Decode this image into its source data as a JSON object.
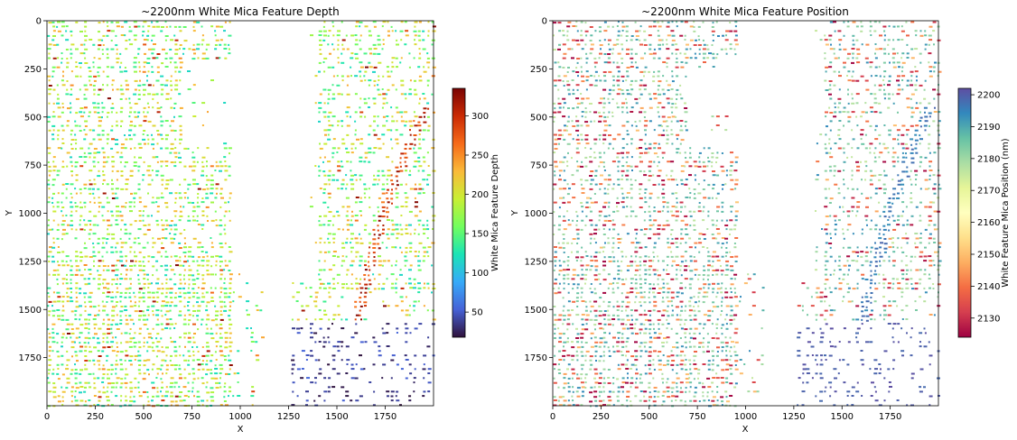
{
  "chart_data": [
    {
      "type": "heatmap",
      "title": "~2200nm White Mica Feature Depth",
      "xlabel": "X",
      "ylabel": "Y",
      "xlim": [
        0,
        2000
      ],
      "ylim": [
        2000,
        0
      ],
      "x_ticks": [
        0,
        250,
        500,
        750,
        1000,
        1250,
        1500,
        1750
      ],
      "y_ticks": [
        0,
        250,
        500,
        750,
        1000,
        1250,
        1500,
        1750
      ],
      "colormap": "turbo",
      "colorbar": {
        "label": "White Mica Feature Depth",
        "range": [
          18,
          335
        ],
        "ticks": [
          50,
          100,
          150,
          200,
          250,
          300
        ],
        "colors": [
          "#30123b",
          "#4662d7",
          "#36aaf9",
          "#1ae4b6",
          "#72fe5e",
          "#c8ef34",
          "#faba39",
          "#f66b19",
          "#ca2a04",
          "#7a0403"
        ]
      },
      "background_fraction_note": "",
      "grid": false
    },
    {
      "type": "heatmap",
      "title": "~2200nm White Mica Feature Position",
      "xlabel": "X",
      "ylabel": "Y",
      "xlim": [
        0,
        2000
      ],
      "ylim": [
        2000,
        0
      ],
      "x_ticks": [
        0,
        250,
        500,
        750,
        1000,
        1250,
        1500,
        1750
      ],
      "y_ticks": [
        0,
        250,
        500,
        750,
        1000,
        1250,
        1500,
        1750
      ],
      "colormap": "Spectral",
      "colorbar": {
        "label": "White Feature Mica Position (nm)",
        "range": [
          2124,
          2202
        ],
        "ticks": [
          2130,
          2140,
          2150,
          2160,
          2170,
          2180,
          2190,
          2200
        ],
        "colors": [
          "#9e0142",
          "#d53e4f",
          "#f46d43",
          "#fdae61",
          "#fee08b",
          "#ffffbf",
          "#e6f598",
          "#abdda4",
          "#66c2a5",
          "#3288bd",
          "#5e4fa2"
        ]
      },
      "grid": false
    }
  ]
}
